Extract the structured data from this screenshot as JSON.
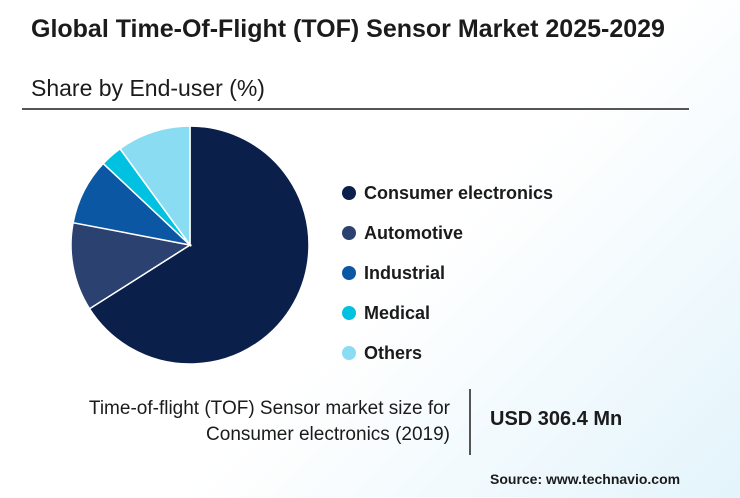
{
  "header": {
    "title": "Global Time-Of-Flight (TOF) Sensor Market 2025-2029",
    "subtitle": "Share by End-user (%)"
  },
  "chart_data": {
    "type": "pie",
    "start_angle_deg": 0,
    "direction": "clockwise",
    "slices": [
      {
        "label": "Consumer electronics",
        "value": 66,
        "color": "#0b1f4b"
      },
      {
        "label": "Automotive",
        "value": 12,
        "color": "#2b4170"
      },
      {
        "label": "Industrial",
        "value": 9,
        "color": "#0b57a4"
      },
      {
        "label": "Medical",
        "value": 3,
        "color": "#00c2e0"
      },
      {
        "label": "Others",
        "value": 10,
        "color": "#8adcf2"
      }
    ],
    "legend_position": "right"
  },
  "footer": {
    "caption_line1": "Time-of-flight (TOF) Sensor market size for",
    "caption_line2": "Consumer electronics (2019)",
    "value": "USD 306.4 Mn",
    "source": "Source: www.technavio.com"
  }
}
